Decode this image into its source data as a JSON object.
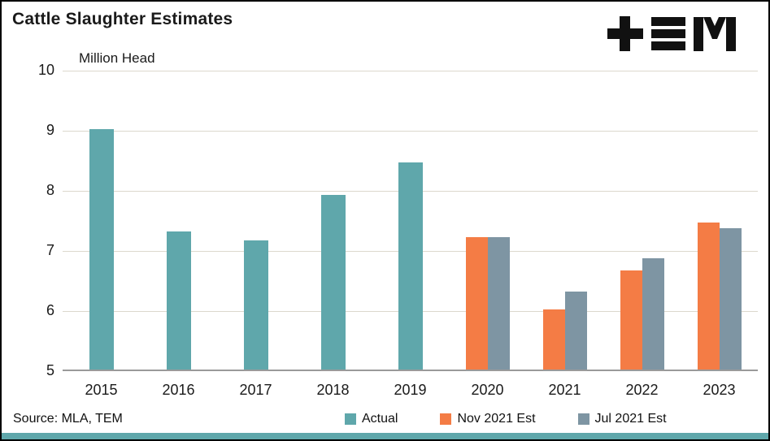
{
  "title": "Cattle Slaughter Estimates",
  "y_axis_title": "Million Head",
  "source": "Source: MLA, TEM",
  "logo_name": "tem-logo",
  "colors": {
    "actual": "#5FA7AB",
    "nov_est": "#F47C45",
    "jul_est": "#7E95A3",
    "footer_bar": "#5FA7AB",
    "gridline": "#dcd8cd",
    "axis_line": "#9a9a9a",
    "logo": "#111111"
  },
  "chart_data": {
    "type": "bar",
    "title": "Cattle Slaughter Estimates",
    "xlabel": "",
    "ylabel": "Million Head",
    "categories": [
      "2015",
      "2016",
      "2017",
      "2018",
      "2019",
      "2020",
      "2021",
      "2022",
      "2023"
    ],
    "series": [
      {
        "name": "Actual",
        "color": "#5FA7AB",
        "values": [
          9.0,
          7.3,
          7.15,
          7.9,
          8.45,
          null,
          null,
          null,
          null
        ]
      },
      {
        "name": "Nov 2021 Est",
        "color": "#F47C45",
        "values": [
          null,
          null,
          null,
          null,
          null,
          7.2,
          6.0,
          6.65,
          7.45
        ]
      },
      {
        "name": "Jul 2021 Est",
        "color": "#7E95A3",
        "values": [
          null,
          null,
          null,
          null,
          null,
          7.2,
          6.3,
          6.85,
          7.35
        ]
      }
    ],
    "ylim": [
      5,
      10
    ],
    "yticks": [
      5,
      6,
      7,
      8,
      9,
      10
    ],
    "grid": true,
    "legend_position": "bottom"
  },
  "legend": [
    {
      "label": "Actual",
      "color": "#5FA7AB"
    },
    {
      "label": "Nov 2021 Est",
      "color": "#F47C45"
    },
    {
      "label": "Jul 2021 Est",
      "color": "#7E95A3"
    }
  ]
}
